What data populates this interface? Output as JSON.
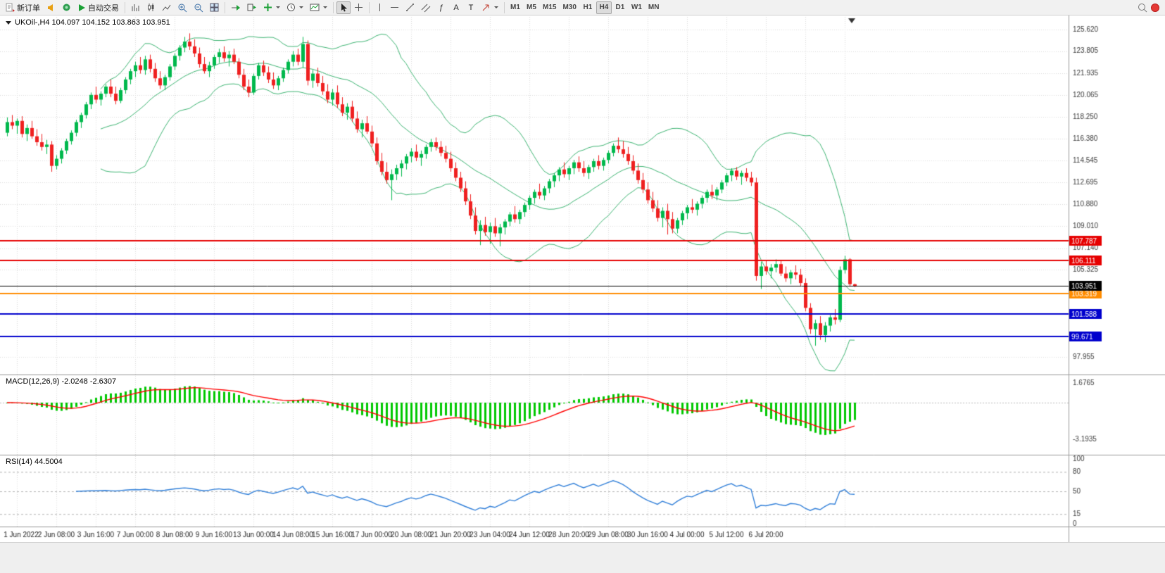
{
  "toolbar": {
    "new_order_label": "新订单",
    "auto_trading_label": "自动交易",
    "fibo_label": "ƒ",
    "text_label": "A",
    "label_tool_label": "T",
    "timeframes": [
      "M1",
      "M5",
      "M15",
      "M30",
      "H1",
      "H4",
      "D1",
      "W1",
      "MN"
    ],
    "active_timeframe": "H4"
  },
  "chart": {
    "info_line": "UKOil-,H4 104.097 104.152 103.863 103.951",
    "macd_line": "MACD(12,26,9) -2.0248 -2.6307",
    "rsi_line": "RSI(14) 44.5004"
  },
  "chart_data": {
    "type": "candlestick",
    "symbol": "UKOil-",
    "timeframe": "H4",
    "ohlc": {
      "open": 104.097,
      "high": 104.152,
      "low": 103.863,
      "close": 103.951
    },
    "ylim": [
      97.955,
      125.62
    ],
    "price_ticks": [
      "125.620",
      "123.805",
      "121.935",
      "120.065",
      "118.250",
      "116.380",
      "114.545",
      "112.695",
      "110.880",
      "109.010",
      "107.140",
      "105.325",
      "97.955"
    ],
    "x_labels": [
      "1 Jun 2022",
      "2 Jun 08:00",
      "3 Jun 16:00",
      "7 Jun 00:00",
      "8 Jun 08:00",
      "9 Jun 16:00",
      "13 Jun 00:00",
      "14 Jun 08:00",
      "15 Jun 16:00",
      "17 Jun 00:00",
      "20 Jun 08:00",
      "21 Jun 20:00",
      "23 Jun 04:00",
      "24 Jun 12:00",
      "28 Jun 20:00",
      "29 Jun 08:00",
      "30 Jun 16:00",
      "4 Jul 00:00",
      "5 Jul 12:00",
      "6 Jul 20:00"
    ],
    "hlines": [
      {
        "price": 107.787,
        "label": "107.787",
        "color": "#e60000"
      },
      {
        "price": 106.111,
        "label": "106.111",
        "color": "#e60000"
      },
      {
        "price": 103.319,
        "label": "103.319",
        "color": "#ff8c00"
      },
      {
        "price": 101.588,
        "label": "101.588",
        "color": "#0000cd"
      },
      {
        "price": 99.671,
        "label": "99.671",
        "color": "#0000cd"
      }
    ],
    "current_price": {
      "value": 103.951,
      "label": "103.951",
      "color": "#000000"
    },
    "bollinger": {
      "period": 20,
      "deviation": 2
    },
    "macd": {
      "fast": 12,
      "slow": 26,
      "signal": 9,
      "main_value": -2.0248,
      "signal_value": -2.6307,
      "ticks": [
        "1.6765",
        "-3.1935"
      ]
    },
    "rsi": {
      "period": 14,
      "value": 44.5004,
      "ticks": [
        "100",
        "80",
        "50",
        "15",
        "0"
      ],
      "levels": [
        80,
        50,
        15
      ]
    },
    "colors": {
      "bull": "#00b84c",
      "bear": "#ef2020",
      "bb": "#3cb371",
      "hist": "#00c800",
      "signal": "#ff0000",
      "rsi": "#2f7ed8"
    },
    "candles": [
      [
        116.9,
        118.2,
        116.6,
        117.8
      ],
      [
        117.8,
        118.4,
        117.2,
        117.5
      ],
      [
        117.5,
        118.1,
        116.8,
        117.9
      ],
      [
        117.9,
        118.3,
        116.5,
        116.8
      ],
      [
        116.8,
        117.6,
        116.2,
        117.3
      ],
      [
        117.3,
        117.9,
        116.4,
        116.6
      ],
      [
        116.6,
        117.2,
        115.8,
        116.1
      ],
      [
        116.1,
        116.8,
        115.4,
        115.7
      ],
      [
        115.7,
        116.3,
        115.1,
        115.9
      ],
      [
        115.9,
        116.2,
        113.6,
        114.1
      ],
      [
        114.1,
        115.0,
        113.8,
        114.7
      ],
      [
        114.7,
        115.6,
        114.3,
        115.4
      ],
      [
        115.4,
        116.4,
        115.1,
        116.2
      ],
      [
        116.2,
        117.1,
        115.9,
        116.9
      ],
      [
        116.9,
        118.0,
        116.6,
        117.8
      ],
      [
        117.8,
        118.6,
        117.3,
        118.4
      ],
      [
        118.4,
        119.5,
        118.1,
        119.3
      ],
      [
        119.3,
        120.3,
        118.9,
        120.1
      ],
      [
        120.1,
        120.8,
        119.4,
        119.7
      ],
      [
        119.7,
        120.4,
        119.2,
        120.2
      ],
      [
        120.2,
        121.0,
        119.9,
        120.8
      ],
      [
        120.8,
        121.4,
        119.9,
        120.2
      ],
      [
        120.2,
        120.8,
        119.3,
        119.6
      ],
      [
        119.6,
        120.7,
        119.4,
        120.5
      ],
      [
        120.5,
        121.6,
        120.2,
        121.4
      ],
      [
        121.4,
        122.3,
        121.0,
        122.1
      ],
      [
        122.1,
        122.9,
        121.6,
        122.6
      ],
      [
        122.6,
        123.3,
        121.9,
        122.2
      ],
      [
        122.2,
        123.4,
        121.8,
        123.1
      ],
      [
        123.1,
        123.5,
        122.0,
        122.3
      ],
      [
        122.3,
        122.8,
        121.2,
        121.5
      ],
      [
        121.5,
        122.1,
        120.6,
        120.9
      ],
      [
        120.9,
        121.8,
        120.5,
        121.6
      ],
      [
        121.6,
        122.7,
        121.3,
        122.5
      ],
      [
        122.5,
        123.6,
        122.2,
        123.4
      ],
      [
        123.4,
        124.3,
        123.0,
        124.1
      ],
      [
        124.1,
        125.0,
        123.7,
        124.6
      ],
      [
        124.6,
        125.3,
        123.9,
        124.2
      ],
      [
        124.2,
        124.8,
        123.3,
        123.6
      ],
      [
        123.6,
        124.1,
        122.4,
        122.7
      ],
      [
        122.7,
        123.3,
        121.9,
        122.1
      ],
      [
        122.1,
        122.9,
        121.6,
        122.6
      ],
      [
        122.6,
        123.5,
        122.3,
        123.3
      ],
      [
        123.3,
        124.0,
        122.8,
        123.7
      ],
      [
        123.7,
        124.2,
        122.9,
        123.2
      ],
      [
        123.2,
        123.8,
        122.5,
        123.5
      ],
      [
        123.5,
        124.0,
        122.7,
        122.9
      ],
      [
        122.9,
        123.2,
        121.5,
        121.8
      ],
      [
        121.8,
        122.3,
        120.5,
        120.8
      ],
      [
        120.8,
        121.4,
        119.9,
        120.3
      ],
      [
        120.3,
        121.9,
        120.1,
        121.7
      ],
      [
        121.7,
        122.8,
        121.4,
        122.6
      ],
      [
        122.6,
        123.0,
        121.7,
        122.0
      ],
      [
        122.0,
        122.5,
        121.1,
        121.4
      ],
      [
        121.4,
        122.0,
        120.6,
        120.9
      ],
      [
        120.9,
        121.7,
        120.5,
        121.5
      ],
      [
        121.5,
        122.4,
        121.2,
        122.2
      ],
      [
        122.2,
        123.1,
        121.9,
        122.9
      ],
      [
        122.9,
        123.8,
        122.5,
        123.5
      ],
      [
        123.5,
        124.0,
        122.6,
        122.9
      ],
      [
        122.9,
        125.0,
        122.4,
        124.4
      ],
      [
        124.4,
        124.7,
        120.9,
        121.3
      ],
      [
        121.3,
        122.2,
        120.7,
        121.9
      ],
      [
        121.9,
        122.4,
        120.8,
        121.1
      ],
      [
        121.1,
        121.7,
        120.1,
        120.4
      ],
      [
        120.4,
        121.0,
        119.4,
        119.7
      ],
      [
        119.7,
        120.6,
        119.2,
        120.3
      ],
      [
        120.3,
        120.9,
        119.0,
        119.3
      ],
      [
        119.3,
        119.9,
        118.3,
        118.6
      ],
      [
        118.6,
        119.4,
        118.0,
        119.1
      ],
      [
        119.1,
        119.6,
        117.8,
        118.1
      ],
      [
        118.1,
        118.7,
        116.9,
        117.2
      ],
      [
        117.2,
        118.0,
        116.5,
        117.7
      ],
      [
        117.7,
        118.3,
        116.8,
        117.0
      ],
      [
        117.0,
        117.5,
        115.7,
        116.0
      ],
      [
        116.0,
        116.5,
        114.2,
        114.5
      ],
      [
        114.5,
        115.2,
        113.3,
        113.6
      ],
      [
        113.6,
        114.4,
        112.6,
        112.9
      ],
      [
        112.9,
        113.8,
        111.2,
        113.4
      ],
      [
        113.4,
        114.2,
        112.9,
        113.9
      ],
      [
        113.9,
        114.6,
        113.2,
        114.3
      ],
      [
        114.3,
        115.1,
        113.8,
        114.9
      ],
      [
        114.9,
        115.6,
        114.4,
        115.3
      ],
      [
        115.3,
        115.9,
        114.5,
        114.8
      ],
      [
        114.8,
        115.4,
        114.1,
        115.1
      ],
      [
        115.1,
        115.9,
        114.7,
        115.7
      ],
      [
        115.7,
        116.4,
        115.3,
        116.1
      ],
      [
        116.1,
        116.5,
        115.4,
        115.7
      ],
      [
        115.7,
        116.2,
        114.9,
        115.2
      ],
      [
        115.2,
        115.8,
        114.4,
        114.7
      ],
      [
        114.7,
        115.3,
        113.6,
        113.9
      ],
      [
        113.9,
        114.4,
        112.8,
        113.1
      ],
      [
        113.1,
        113.6,
        111.9,
        112.2
      ],
      [
        112.2,
        112.8,
        110.8,
        111.1
      ],
      [
        111.1,
        111.7,
        109.6,
        109.9
      ],
      [
        109.9,
        110.6,
        108.3,
        108.6
      ],
      [
        108.6,
        109.5,
        107.4,
        109.1
      ],
      [
        109.1,
        109.8,
        108.2,
        108.5
      ],
      [
        108.5,
        109.3,
        107.5,
        109.0
      ],
      [
        109.0,
        109.7,
        108.1,
        108.4
      ],
      [
        108.4,
        109.2,
        107.3,
        108.9
      ],
      [
        108.9,
        109.6,
        108.3,
        109.4
      ],
      [
        109.4,
        110.2,
        109.0,
        110.0
      ],
      [
        110.0,
        110.7,
        109.3,
        109.6
      ],
      [
        109.6,
        110.4,
        109.2,
        110.2
      ],
      [
        110.2,
        111.0,
        109.8,
        110.8
      ],
      [
        110.8,
        111.6,
        110.4,
        111.4
      ],
      [
        111.4,
        112.1,
        110.9,
        111.9
      ],
      [
        111.9,
        112.6,
        111.3,
        111.6
      ],
      [
        111.6,
        112.4,
        111.2,
        112.2
      ],
      [
        112.2,
        113.0,
        111.8,
        112.8
      ],
      [
        112.8,
        113.5,
        112.3,
        113.3
      ],
      [
        113.3,
        114.0,
        112.8,
        113.8
      ],
      [
        113.8,
        114.4,
        113.1,
        113.4
      ],
      [
        113.4,
        114.1,
        112.9,
        113.9
      ],
      [
        113.9,
        114.6,
        113.4,
        114.4
      ],
      [
        114.4,
        114.9,
        113.6,
        113.9
      ],
      [
        113.9,
        114.5,
        113.2,
        113.5
      ],
      [
        113.5,
        114.2,
        113.0,
        114.0
      ],
      [
        114.0,
        114.7,
        113.6,
        114.5
      ],
      [
        114.5,
        115.0,
        113.8,
        114.1
      ],
      [
        114.1,
        114.8,
        113.7,
        114.6
      ],
      [
        114.6,
        115.4,
        114.3,
        115.2
      ],
      [
        115.2,
        116.0,
        114.9,
        115.8
      ],
      [
        115.8,
        116.5,
        115.2,
        115.5
      ],
      [
        115.5,
        116.2,
        114.8,
        115.1
      ],
      [
        115.1,
        115.7,
        114.2,
        114.5
      ],
      [
        114.5,
        115.0,
        113.4,
        113.7
      ],
      [
        113.7,
        114.3,
        112.6,
        112.9
      ],
      [
        112.9,
        113.5,
        111.8,
        112.1
      ],
      [
        112.1,
        112.7,
        110.9,
        111.2
      ],
      [
        111.2,
        111.9,
        110.2,
        110.5
      ],
      [
        110.5,
        111.2,
        109.4,
        109.7
      ],
      [
        109.7,
        110.6,
        108.9,
        110.3
      ],
      [
        110.3,
        110.9,
        108.3,
        109.6
      ],
      [
        109.6,
        110.2,
        108.4,
        108.8
      ],
      [
        108.8,
        109.7,
        108.4,
        109.5
      ],
      [
        109.5,
        110.3,
        109.1,
        110.1
      ],
      [
        110.1,
        110.8,
        109.6,
        110.6
      ],
      [
        110.6,
        111.3,
        110.1,
        110.4
      ],
      [
        110.4,
        111.1,
        109.9,
        110.9
      ],
      [
        110.9,
        111.6,
        110.5,
        111.4
      ],
      [
        111.4,
        112.1,
        111.0,
        111.9
      ],
      [
        111.9,
        112.5,
        111.3,
        111.6
      ],
      [
        111.6,
        112.3,
        111.2,
        112.1
      ],
      [
        112.1,
        112.9,
        111.8,
        112.7
      ],
      [
        112.7,
        113.5,
        112.4,
        113.3
      ],
      [
        113.3,
        113.9,
        112.8,
        113.7
      ],
      [
        113.7,
        114.0,
        112.9,
        113.2
      ],
      [
        113.2,
        113.7,
        112.5,
        113.5
      ],
      [
        113.5,
        113.9,
        112.8,
        113.1
      ],
      [
        113.1,
        113.6,
        112.4,
        112.7
      ],
      [
        112.7,
        113.1,
        104.4,
        104.8
      ],
      [
        104.8,
        106.0,
        103.7,
        105.6
      ],
      [
        105.6,
        106.1,
        104.9,
        105.2
      ],
      [
        105.2,
        105.8,
        104.6,
        105.5
      ],
      [
        105.5,
        106.2,
        105.1,
        105.8
      ],
      [
        105.8,
        106.1,
        104.8,
        105.0
      ],
      [
        105.0,
        105.6,
        104.3,
        104.6
      ],
      [
        104.6,
        105.3,
        104.1,
        105.1
      ],
      [
        105.1,
        105.7,
        104.5,
        104.9
      ],
      [
        104.9,
        105.4,
        103.9,
        104.2
      ],
      [
        104.2,
        104.6,
        101.8,
        102.1
      ],
      [
        102.1,
        102.5,
        99.9,
        100.3
      ],
      [
        100.3,
        101.1,
        98.9,
        100.8
      ],
      [
        100.8,
        101.4,
        99.4,
        99.8
      ],
      [
        99.8,
        100.9,
        99.2,
        100.6
      ],
      [
        100.6,
        101.5,
        100.1,
        101.3
      ],
      [
        101.3,
        102.0,
        100.7,
        101.1
      ],
      [
        101.1,
        105.6,
        100.9,
        105.3
      ],
      [
        105.3,
        106.5,
        105.0,
        106.2
      ],
      [
        106.2,
        106.3,
        103.9,
        104.1
      ],
      [
        104.097,
        104.152,
        103.863,
        103.951
      ]
    ]
  }
}
